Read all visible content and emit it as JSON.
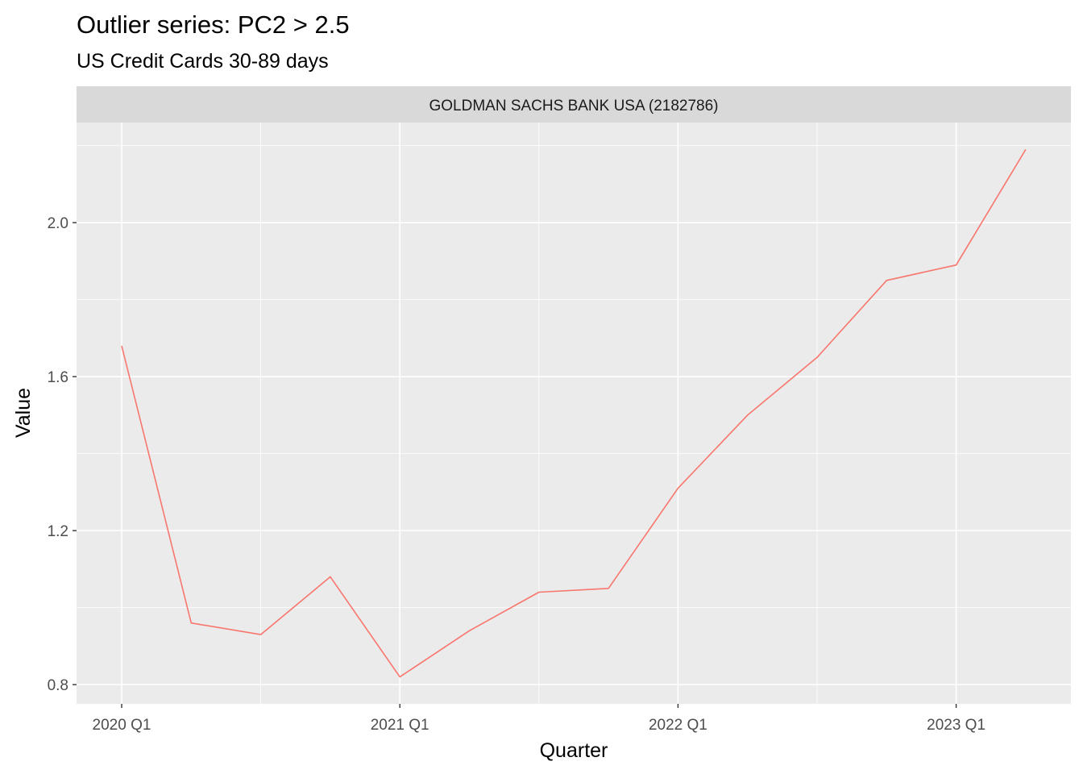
{
  "chart_data": {
    "type": "line",
    "title": "Outlier series: PC2 > 2.5",
    "subtitle": "US Credit Cards 30-89 days",
    "facet_label": "GOLDMAN SACHS BANK USA (2182786)",
    "xlabel": "Quarter",
    "ylabel": "Value",
    "x_ticks": [
      "2020 Q1",
      "2021 Q1",
      "2022 Q1",
      "2023 Q1"
    ],
    "y_ticks": [
      "0.8",
      "1.2",
      "1.6",
      "2.0"
    ],
    "x": [
      "2020 Q1",
      "2020 Q2",
      "2020 Q3",
      "2020 Q4",
      "2021 Q1",
      "2021 Q2",
      "2021 Q3",
      "2021 Q4",
      "2022 Q1",
      "2022 Q2",
      "2022 Q3",
      "2022 Q4",
      "2023 Q1",
      "2023 Q2"
    ],
    "series": [
      {
        "values": [
          1.68,
          0.96,
          0.93,
          1.08,
          0.82,
          0.94,
          1.04,
          1.05,
          1.31,
          1.5,
          1.65,
          1.85,
          1.89,
          2.19
        ],
        "color": "#f8766d"
      }
    ],
    "ylim": [
      0.75,
      2.26
    ],
    "grid": true,
    "legend": "none",
    "panel_background": "#ebebeb",
    "strip_background": "#d9d9d9"
  }
}
